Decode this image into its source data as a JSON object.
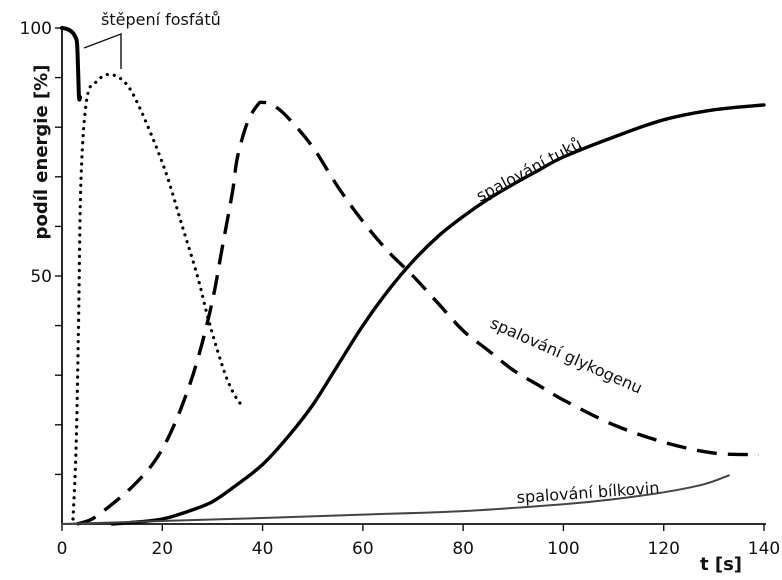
{
  "chart_data": {
    "type": "line",
    "title": "",
    "xlabel": "t [s]",
    "ylabel": "podíl energie [%]",
    "xlim": [
      0,
      140
    ],
    "ylim": [
      0,
      100
    ],
    "x_ticks": [
      0,
      20,
      40,
      60,
      80,
      100,
      120,
      140
    ],
    "y_tick_labels": [
      {
        "value": 50,
        "label": "50"
      },
      {
        "value": 100,
        "label": "100"
      }
    ],
    "y_minor_ticks": [
      10,
      20,
      30,
      40,
      60,
      70,
      80,
      90
    ],
    "grid": false,
    "legend": "none",
    "colors": {
      "axis": "#111111",
      "fat": "#000000",
      "glycogen": "#000000",
      "phosphate": "#000000",
      "protein": "#444444"
    },
    "annotation": {
      "text": "štěpení fosfátů"
    },
    "series": [
      {
        "key": "phosphate_main",
        "name": "štěpení fosfátů",
        "style": "solid-bold",
        "points": [
          [
            0,
            100
          ],
          [
            1,
            99.8
          ],
          [
            2,
            99.2
          ],
          [
            2.6,
            98.3
          ],
          [
            3,
            97
          ],
          [
            3.2,
            92
          ],
          [
            3.4,
            86
          ],
          [
            3.6,
            86
          ]
        ]
      },
      {
        "key": "phosphate_dotted",
        "style": "dotted",
        "points": [
          [
            2.2,
            1
          ],
          [
            2.8,
            15
          ],
          [
            3.3,
            40
          ],
          [
            3.8,
            70
          ],
          [
            5,
            86
          ],
          [
            7,
            89.3
          ],
          [
            9,
            90.6
          ],
          [
            11,
            90.2
          ],
          [
            13,
            88.5
          ],
          [
            15,
            85
          ],
          [
            18,
            78
          ],
          [
            21,
            70
          ],
          [
            24,
            60
          ],
          [
            27,
            50
          ],
          [
            29,
            42
          ],
          [
            31,
            35
          ],
          [
            33,
            29
          ],
          [
            35,
            25
          ],
          [
            36.5,
            23.5
          ]
        ]
      },
      {
        "key": "glycogen",
        "name": "spalování glykogenu",
        "style": "dashed",
        "points": [
          [
            3,
            0
          ],
          [
            6,
            1
          ],
          [
            10,
            4
          ],
          [
            14,
            7.5
          ],
          [
            18,
            12
          ],
          [
            21,
            17
          ],
          [
            24,
            24
          ],
          [
            27,
            33
          ],
          [
            30,
            45
          ],
          [
            32,
            56
          ],
          [
            34,
            67
          ],
          [
            35,
            74
          ],
          [
            37,
            81
          ],
          [
            39,
            84.5
          ],
          [
            40,
            85
          ],
          [
            42,
            84.5
          ],
          [
            45,
            82
          ],
          [
            50,
            76
          ],
          [
            55,
            68
          ],
          [
            60,
            61
          ],
          [
            65,
            55
          ],
          [
            70,
            50
          ],
          [
            75,
            44.5
          ],
          [
            80,
            39
          ],
          [
            85,
            35
          ],
          [
            90,
            31
          ],
          [
            95,
            28
          ],
          [
            100,
            25
          ],
          [
            110,
            20
          ],
          [
            120,
            16.5
          ],
          [
            130,
            14.3
          ],
          [
            139,
            14
          ]
        ]
      },
      {
        "key": "fat",
        "name": "spalování tuků",
        "style": "solid",
        "points": [
          [
            10,
            0
          ],
          [
            15,
            0.4
          ],
          [
            20,
            1
          ],
          [
            25,
            2.5
          ],
          [
            30,
            4.5
          ],
          [
            35,
            8
          ],
          [
            40,
            12
          ],
          [
            45,
            17.5
          ],
          [
            50,
            24
          ],
          [
            55,
            32
          ],
          [
            60,
            40
          ],
          [
            65,
            47
          ],
          [
            70,
            53
          ],
          [
            75,
            58
          ],
          [
            80,
            62
          ],
          [
            85,
            65.5
          ],
          [
            90,
            68.5
          ],
          [
            95,
            71.3
          ],
          [
            100,
            74
          ],
          [
            110,
            78
          ],
          [
            120,
            81.5
          ],
          [
            130,
            83.5
          ],
          [
            140,
            84.5
          ]
        ]
      },
      {
        "key": "protein",
        "name": "spalování bílkovin",
        "style": "solid-thin",
        "points": [
          [
            0,
            0
          ],
          [
            20,
            0.6
          ],
          [
            40,
            1.2
          ],
          [
            60,
            1.9
          ],
          [
            80,
            2.6
          ],
          [
            100,
            4
          ],
          [
            110,
            5
          ],
          [
            120,
            6.4
          ],
          [
            128,
            8
          ],
          [
            133,
            9.8
          ]
        ]
      }
    ]
  }
}
